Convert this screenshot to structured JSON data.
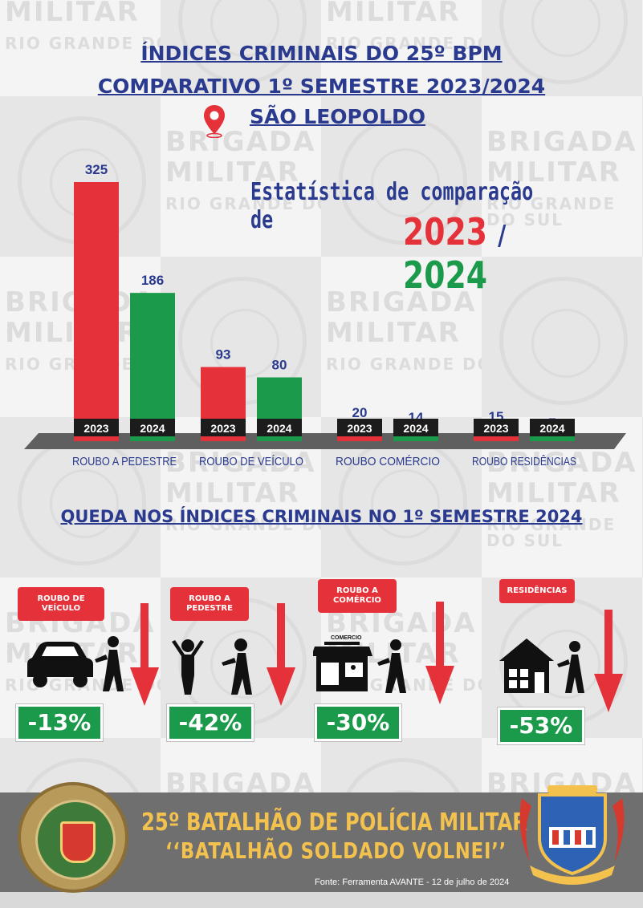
{
  "header": {
    "title_line1": "ÍNDICES CRIMINAIS DO 25º BPM",
    "title_line2": "COMPARATIVO 1º SEMESTRE 2023/2024",
    "location": "SÃO LEOPOLDO"
  },
  "stat_heading": {
    "text": "Estatística de comparação de",
    "year_a": "2023",
    "separator": "/",
    "year_b": "2024"
  },
  "watermark": {
    "line1": "BRIGADA",
    "line2": "MILITAR",
    "line3": "RIO GRANDE DO SUL"
  },
  "chart_data": {
    "type": "bar",
    "categories": [
      "ROUBO A PEDESTRE",
      "ROUBO DE VEÍCULO",
      "ROUBO COMÉRCIO",
      "ROUBO RESIDÊNCIAS"
    ],
    "series": [
      {
        "name": "2023",
        "values": [
          325,
          93,
          20,
          15
        ],
        "color": "#e5323a"
      },
      {
        "name": "2024",
        "values": [
          186,
          80,
          14,
          7
        ],
        "color": "#1a9a4a"
      }
    ],
    "title": "",
    "xlabel": "",
    "ylabel": "",
    "ylim": [
      0,
      325
    ],
    "grid": false,
    "legend": "none"
  },
  "queda": {
    "title": "QUEDA NOS ÍNDICES CRIMINAIS NO 1º SEMESTRE 2024",
    "items": [
      {
        "label": "ROUBO DE VEÍCULO",
        "percent": "-13%",
        "icon": "car-robbery-icon"
      },
      {
        "label": "ROUBO A PEDESTRE",
        "percent": "-42%",
        "icon": "pedestrian-robbery-icon"
      },
      {
        "label": "ROUBO A COMÉRCIO",
        "percent": "-30%",
        "icon": "shop-robbery-icon",
        "shop_sign": "COMERCIO"
      },
      {
        "label": "RESIDÊNCIAS",
        "percent": "-53%",
        "icon": "house-robbery-icon"
      }
    ]
  },
  "footer": {
    "line1": "25º BATALHÃO DE POLÍCIA MILITAR",
    "line2": "‘‘BATALHÃO SOLDADO VOLNEI’’",
    "source": "Fonte: Ferramenta AVANTE - 12 de julho de 2024",
    "left_badge_icon": "brigada-militar-seal-icon",
    "right_crest_icon": "25-bpm-crest-icon"
  },
  "colors": {
    "navy": "#2a3a8e",
    "red": "#e5323a",
    "green": "#1a9a4a",
    "gold": "#f2c14e"
  }
}
